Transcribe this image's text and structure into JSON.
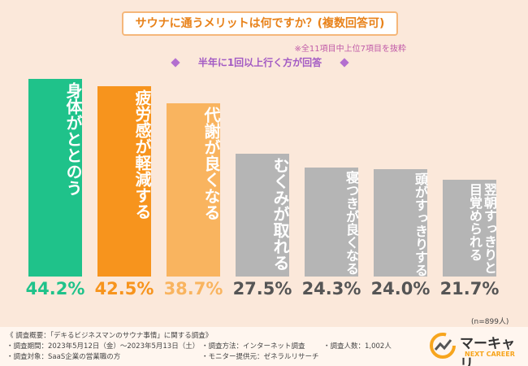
{
  "chart_data": {
    "type": "bar",
    "title": "サウナに通うメリットは何ですか？(複数回答可)",
    "note": "※全11項目中上位7項目を抜粋",
    "subtitle": "半年に1回以上行く方が回答",
    "categories": [
      "身体がととのう",
      "疲労感が軽減する",
      "代謝が良くなる",
      "むくみが取れる",
      "寝つきが良くなる",
      "頭がすっきりする",
      "翌朝すっきりと目覚められる"
    ],
    "values": [
      44.2,
      42.5,
      38.7,
      27.5,
      24.3,
      24.0,
      21.7
    ],
    "value_labels": [
      "44.2%",
      "42.5%",
      "38.7%",
      "27.5%",
      "24.3%",
      "24.0%",
      "21.7%"
    ],
    "colors": [
      "#1fc28a",
      "#f7941d",
      "#f9b45f",
      "#b5b5b5",
      "#b5b5b5",
      "#b5b5b5",
      "#b5b5b5"
    ],
    "label_colors": [
      "#1fc28a",
      "#f7941d",
      "#f9b45f",
      "#555555",
      "#555555",
      "#555555",
      "#555555"
    ],
    "sample": "(n=899人)"
  },
  "footer": {
    "heading": "《 調査概要：「デキるビジネスマンのサウナ事情」に関する調査》",
    "period": "・調査期間：2023年5月12日（金）～2023年5月13日（土）",
    "target": "・調査対象：SaaS企業の営業職の方",
    "method": "・調査方法：インターネット調査",
    "provider": "・モニター提供元：ゼネラルリサーチ",
    "count": "・調査人数：1,002人"
  },
  "logo": {
    "name": "マーキャリ",
    "tagline": "NEXT CAREER"
  }
}
